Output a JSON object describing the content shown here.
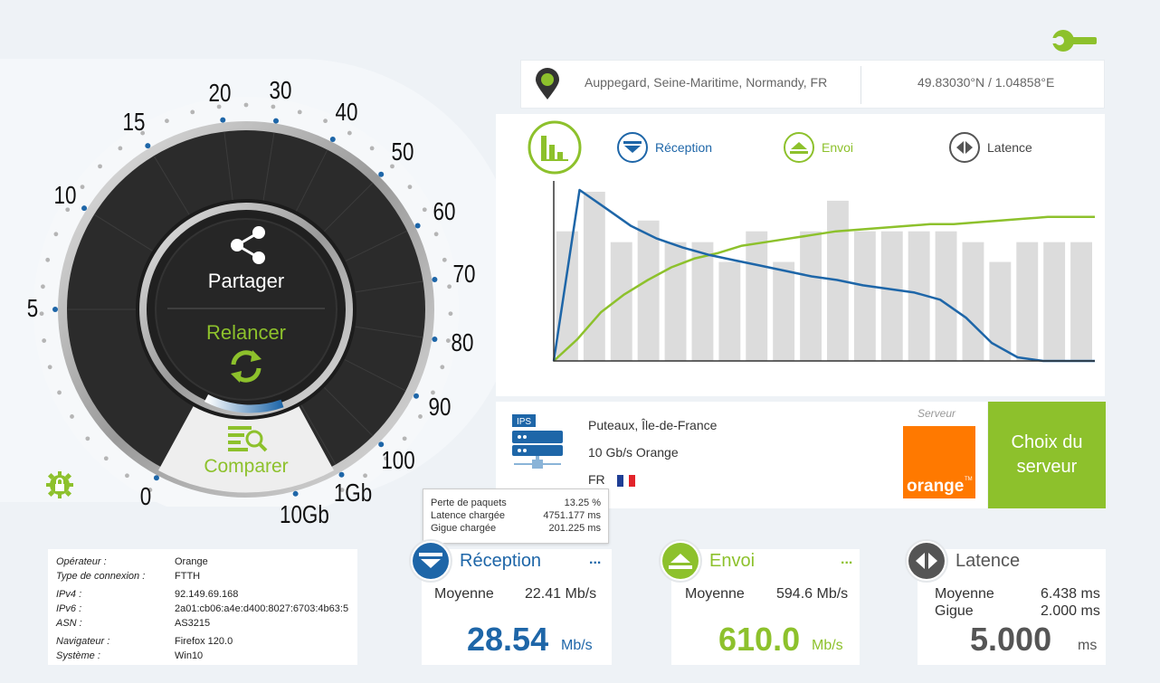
{
  "location": {
    "place": "Auppegard, Seine-Maritime, Normandy, FR",
    "coords": "49.83030°N / 1.04858°E"
  },
  "gauge": {
    "ticks": [
      "0",
      "5",
      "10",
      "15",
      "20",
      "30",
      "40",
      "50",
      "60",
      "70",
      "80",
      "90",
      "100",
      "1Gb",
      "10Gb"
    ],
    "share_label": "Partager",
    "restart_label": "Relancer",
    "compare_label": "Comparer"
  },
  "legend": {
    "download": "Réception",
    "upload": "Envoi",
    "latency": "Latence"
  },
  "chart_data": {
    "type": "bar",
    "bars_relative": [
      0.72,
      0.94,
      0.66,
      0.78,
      0.66,
      0.66,
      0.55,
      0.72,
      0.55,
      0.72,
      0.89,
      0.72,
      0.72,
      0.72,
      0.72,
      0.66,
      0.55,
      0.66,
      0.66,
      0.66
    ],
    "download_line_relative": [
      0.0,
      0.95,
      0.85,
      0.75,
      0.68,
      0.63,
      0.59,
      0.56,
      0.53,
      0.5,
      0.47,
      0.45,
      0.42,
      0.4,
      0.38,
      0.34,
      0.24,
      0.1,
      0.02,
      0.0,
      0.0,
      0.0
    ],
    "upload_line_relative": [
      0.0,
      0.12,
      0.27,
      0.37,
      0.45,
      0.52,
      0.57,
      0.6,
      0.64,
      0.66,
      0.68,
      0.7,
      0.72,
      0.73,
      0.74,
      0.75,
      0.76,
      0.76,
      0.77,
      0.78,
      0.79,
      0.8,
      0.8,
      0.8
    ],
    "colors": {
      "bars": "#dcdcdc",
      "download": "#1e66a8",
      "upload": "#8dc12c"
    }
  },
  "server": {
    "city": "Puteaux, Île-de-France",
    "provider_speed": "10 Gb/s Orange",
    "country": "FR",
    "server_label": "Serveur",
    "logo_text": "orange",
    "logo_tm": "TM",
    "isp_badge": "IPS",
    "choose_label_1": "Choix du",
    "choose_label_2": "serveur"
  },
  "tooltip": {
    "rows": [
      {
        "label": "Perte de paquets",
        "value": "13.25 %"
      },
      {
        "label": "Latence chargée",
        "value": "4751.177 ms"
      },
      {
        "label": "Gigue chargée",
        "value": "201.225 ms"
      }
    ]
  },
  "info": {
    "operator_label": "Opérateur :",
    "operator": "Orange",
    "conn_label": "Type de connexion :",
    "conn": "FTTH",
    "ipv4_label": "IPv4 :",
    "ipv4": "92.149.69.168",
    "ipv6_label": "IPv6 :",
    "ipv6": "2a01:cb06:a4e:d400:8027:6703:4b63:5",
    "asn_label": "ASN :",
    "asn": "AS3215",
    "browser_label": "Navigateur :",
    "browser": "Firefox 120.0",
    "system_label": "Système :",
    "system": "Win10"
  },
  "download": {
    "title": "Réception",
    "dots": "...",
    "avg_label": "Moyenne",
    "avg": "22.41 Mb/s",
    "value": "28.54",
    "unit": "Mb/s"
  },
  "upload": {
    "title": "Envoi",
    "dots": "...",
    "avg_label": "Moyenne",
    "avg": "594.6 Mb/s",
    "value": "610.0",
    "unit": "Mb/s"
  },
  "latency": {
    "title": "Latence",
    "avg_label": "Moyenne",
    "avg": "6.438 ms",
    "jitter_label": "Gigue",
    "jitter": "2.000 ms",
    "value": "5.000",
    "unit": "ms"
  },
  "colors": {
    "accent_green": "#8dc12c",
    "accent_blue": "#1e66a8",
    "orange": "#ff7900"
  }
}
